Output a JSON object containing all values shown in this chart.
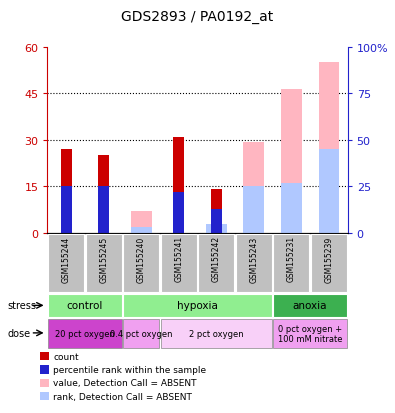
{
  "title": "GDS2893 / PA0192_at",
  "samples": [
    "GSM155244",
    "GSM155245",
    "GSM155240",
    "GSM155241",
    "GSM155242",
    "GSM155243",
    "GSM155231",
    "GSM155239"
  ],
  "count_values": [
    27,
    25,
    0,
    31,
    14,
    0,
    0,
    0
  ],
  "rank_pct_values": [
    25,
    25,
    0,
    22,
    13,
    0,
    0,
    0
  ],
  "absent_value_pct": [
    0,
    0,
    12,
    0,
    0,
    49,
    77,
    92
  ],
  "absent_rank_pct": [
    0,
    0,
    3,
    0,
    5,
    25,
    27,
    45
  ],
  "ylim_left": [
    0,
    60
  ],
  "ylim_right": [
    0,
    100
  ],
  "yticks_left": [
    0,
    15,
    30,
    45,
    60
  ],
  "yticks_right": [
    0,
    25,
    50,
    75,
    100
  ],
  "ytick_labels_left": [
    "0",
    "15",
    "30",
    "45",
    "60"
  ],
  "ytick_labels_right": [
    "0",
    "25",
    "50",
    "75",
    "100%"
  ],
  "stress_groups": [
    {
      "label": "control",
      "start": 0,
      "end": 2,
      "color": "#90ee90"
    },
    {
      "label": "hypoxia",
      "start": 2,
      "end": 6,
      "color": "#90ee90"
    },
    {
      "label": "anoxia",
      "start": 6,
      "end": 8,
      "color": "#3cb050"
    }
  ],
  "dose_groups": [
    {
      "label": "20 pct oxygen",
      "start": 0,
      "end": 2,
      "color": "#cc44cc"
    },
    {
      "label": "0.4 pct oxygen",
      "start": 2,
      "end": 3,
      "color": "#f0a0f0"
    },
    {
      "label": "2 pct oxygen",
      "start": 3,
      "end": 6,
      "color": "#f8d0f8"
    },
    {
      "label": "0 pct oxygen +\n100 mM nitrate",
      "start": 6,
      "end": 8,
      "color": "#f0a0f0"
    }
  ],
  "narrow_bar_width": 0.3,
  "wide_bar_width": 0.55,
  "count_color": "#cc0000",
  "rank_color": "#2222cc",
  "absent_value_color": "#ffb6c1",
  "absent_rank_color": "#b0c8ff",
  "sample_bg_color": "#c0c0c0",
  "left_axis_color": "#cc0000",
  "right_axis_color": "#2222cc",
  "scale": 0.6
}
